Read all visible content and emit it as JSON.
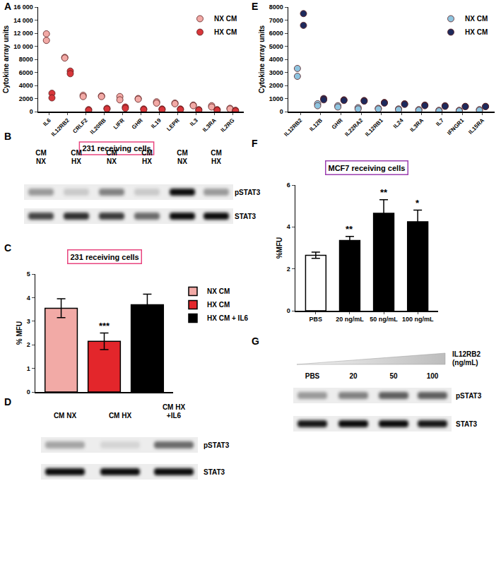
{
  "chart_data": [
    {
      "panel": "A",
      "type": "scatter",
      "categories": [
        "IL6",
        "IL12RB2",
        "CRLF2",
        "IL20RB",
        "LIFR",
        "GHR",
        "IL19",
        "LEPR",
        "IL3",
        "IL3RA",
        "IL2RG"
      ],
      "series": [
        {
          "name": "NX CM",
          "color": "#f2aaa6",
          "values": [
            [
              11900,
              10900
            ],
            [
              8300,
              8200
            ],
            [
              2500,
              2300
            ],
            [
              2400,
              2300
            ],
            [
              2300,
              1800
            ],
            [
              2000,
              1900
            ],
            [
              1500,
              1300
            ],
            [
              1300,
              1200
            ],
            [
              1000,
              900
            ],
            [
              900,
              700
            ],
            [
              500,
              400
            ]
          ]
        },
        {
          "name": "HX CM",
          "color": "#d8363a",
          "values": [
            [
              2800,
              2100
            ],
            [
              6200,
              5800
            ],
            [
              300,
              200
            ],
            [
              500,
              400
            ],
            [
              700,
              500
            ],
            [
              400,
              300
            ],
            [
              400,
              300
            ],
            [
              400,
              300
            ],
            [
              300,
              200
            ],
            [
              300,
              200
            ],
            [
              200,
              100
            ]
          ]
        }
      ],
      "ylabel": "Cytokine array units",
      "ylim": [
        0,
        16000
      ],
      "yticks": [
        0,
        2000,
        4000,
        6000,
        8000,
        {
          "value": 10000,
          "label": "10 000"
        },
        {
          "value": 12000,
          "label": "12 000"
        },
        {
          "value": 14000,
          "label": "14 000"
        },
        {
          "value": 16000,
          "label": "16 000"
        }
      ],
      "grid": false,
      "legend": "top right",
      "marker": "circle"
    },
    {
      "panel": "E",
      "type": "scatter",
      "categories": [
        "IL12RB2",
        "IL12B",
        "GHR",
        "IL22RA2",
        "IL12RB1",
        "IL24",
        "IL3RA",
        "IL7",
        "IFNGR1",
        "IL15RA"
      ],
      "series": [
        {
          "name": "NX CM",
          "color": "#8ec4df",
          "values": [
            [
              3300,
              2700
            ],
            [
              600,
              450
            ],
            [
              450,
              350
            ],
            [
              300,
              200
            ],
            [
              250,
              200
            ],
            [
              200,
              150
            ],
            [
              150,
              100
            ],
            [
              100,
              50
            ],
            [
              100,
              50
            ],
            [
              150,
              100
            ]
          ]
        },
        {
          "name": "HX CM",
          "color": "#1e2a5c",
          "values": [
            [
              7500,
              6600
            ],
            [
              1000,
              900
            ],
            [
              900,
              850
            ],
            [
              850,
              800
            ],
            [
              700,
              650
            ],
            [
              600,
              550
            ],
            [
              500,
              450
            ],
            [
              450,
              400
            ],
            [
              400,
              380
            ],
            [
              400,
              380
            ]
          ]
        }
      ],
      "ylabel": "Cytokine array units",
      "ylim": [
        0,
        8000
      ],
      "yticks": [
        0,
        1000,
        2000,
        3000,
        4000,
        5000,
        6000,
        7000,
        8000
      ],
      "grid": false,
      "legend": "top right",
      "marker": "circle"
    },
    {
      "panel": "C",
      "type": "bar",
      "title": "231 receiving cells",
      "categories": [
        "NX CM",
        "HX CM",
        "HX CM + IL6"
      ],
      "values": [
        3.55,
        2.15,
        3.7
      ],
      "errors": [
        0.4,
        0.35,
        0.45
      ],
      "colors": [
        "#f2aaa6",
        "#e3262b",
        "#000000"
      ],
      "significance": [
        null,
        "***",
        null
      ],
      "ylabel": "% MFU",
      "ylim": [
        0,
        5
      ],
      "yticks": [
        0,
        1,
        2,
        3,
        4,
        5
      ],
      "grid": false,
      "legend": "right",
      "tick_labels": "y"
    },
    {
      "panel": "F",
      "type": "bar",
      "title": "MCF7 receiving cells",
      "categories": [
        "PBS",
        "20 ng/mL",
        "50 ng/mL",
        "100 ng/mL"
      ],
      "values": [
        2.65,
        3.35,
        4.65,
        4.25
      ],
      "errors": [
        0.15,
        0.2,
        0.65,
        0.55
      ],
      "colors": [
        "#ffffff",
        "#000000",
        "#000000",
        "#000000"
      ],
      "significance": [
        null,
        "**",
        "**",
        "*"
      ],
      "ylabel": "%MFU",
      "ylim": [
        0,
        6
      ],
      "yticks": [
        0,
        2,
        4,
        6
      ],
      "grid": false
    }
  ],
  "blots": [
    {
      "panel": "B",
      "title": "231 receiving cells",
      "lanes": [
        [
          "CM",
          "NX"
        ],
        [
          "CM",
          "HX"
        ],
        [
          "CM",
          "NX"
        ],
        [
          "CM",
          "HX"
        ],
        [
          "CM",
          "NX"
        ],
        [
          "CM",
          "HX"
        ]
      ],
      "rows": [
        {
          "label": "pSTAT3",
          "bands": [
            0.35,
            0.15,
            0.45,
            0.15,
            0.95,
            0.35
          ]
        },
        {
          "label": "STAT3",
          "bands": [
            0.7,
            0.8,
            0.75,
            0.55,
            0.95,
            0.95
          ]
        }
      ]
    },
    {
      "panel": "D",
      "lanes": [
        [
          "CM NX"
        ],
        [
          "CM HX"
        ],
        [
          "CM HX",
          "+IL6"
        ]
      ],
      "rows": [
        {
          "label": "pSTAT3",
          "bands": [
            0.3,
            0.1,
            0.55
          ]
        },
        {
          "label": "STAT3",
          "bands": [
            0.95,
            0.95,
            0.95
          ]
        }
      ]
    },
    {
      "panel": "G",
      "header": [
        "IL12RB2",
        "(ng/mL)"
      ],
      "lanes": [
        [
          "PBS"
        ],
        [
          "20"
        ],
        [
          "50"
        ],
        [
          "100"
        ]
      ],
      "rows": [
        {
          "label": "pSTAT3",
          "bands": [
            0.35,
            0.45,
            0.6,
            0.6
          ]
        },
        {
          "label": "STAT3",
          "bands": [
            0.9,
            0.95,
            0.95,
            0.9
          ]
        }
      ]
    }
  ]
}
